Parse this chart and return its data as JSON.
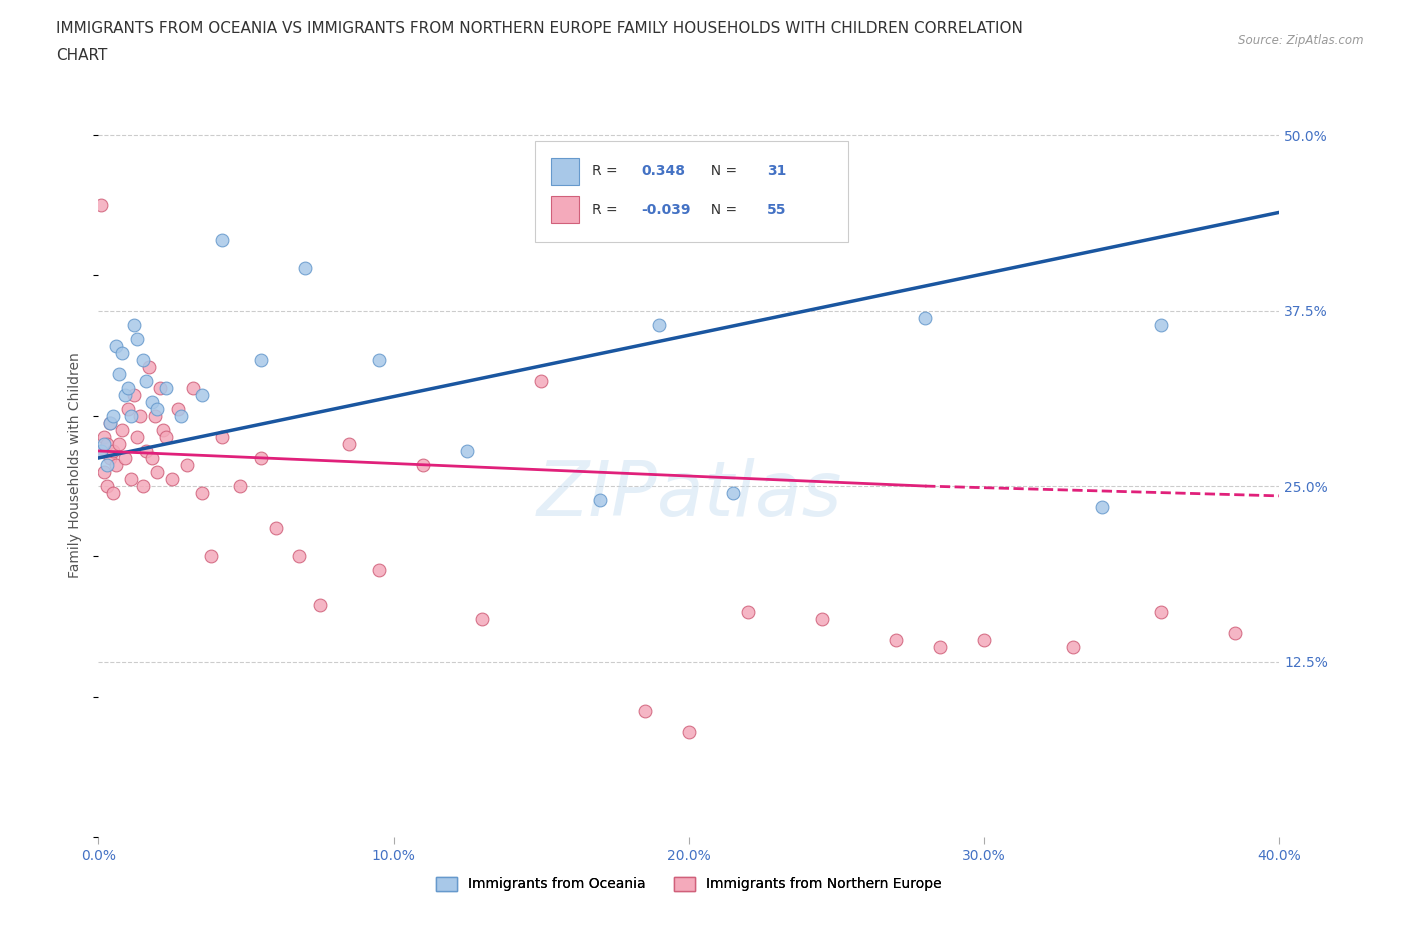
{
  "title_line1": "IMMIGRANTS FROM OCEANIA VS IMMIGRANTS FROM NORTHERN EUROPE FAMILY HOUSEHOLDS WITH CHILDREN CORRELATION",
  "title_line2": "CHART",
  "source_text": "Source: ZipAtlas.com",
  "watermark": "ZIPatlas",
  "ylabel": "Family Households with Children",
  "x_tick_labels": [
    "0.0%",
    "10.0%",
    "20.0%",
    "30.0%",
    "40.0%"
  ],
  "x_tick_values": [
    0.0,
    10.0,
    20.0,
    30.0,
    40.0
  ],
  "y_tick_labels_right": [
    "12.5%",
    "25.0%",
    "37.5%",
    "50.0%"
  ],
  "y_tick_values": [
    12.5,
    25.0,
    37.5,
    50.0
  ],
  "xlim": [
    0.0,
    40.0
  ],
  "ylim": [
    0.0,
    53.0
  ],
  "oceania_color": "#A8C8E8",
  "oceania_edge": "#6699CC",
  "oceania_label": "Immigrants from Oceania",
  "oceania_R": 0.348,
  "oceania_N": 31,
  "oceania_x": [
    0.1,
    0.2,
    0.3,
    0.4,
    0.5,
    0.6,
    0.7,
    0.8,
    0.9,
    1.0,
    1.1,
    1.2,
    1.3,
    1.5,
    1.6,
    1.8,
    2.0,
    2.3,
    2.8,
    3.5,
    4.2,
    5.5,
    7.0,
    9.5,
    12.5,
    17.0,
    19.0,
    21.5,
    28.0,
    34.0,
    36.0
  ],
  "oceania_y": [
    27.5,
    28.0,
    26.5,
    29.5,
    30.0,
    35.0,
    33.0,
    34.5,
    31.5,
    32.0,
    30.0,
    36.5,
    35.5,
    34.0,
    32.5,
    31.0,
    30.5,
    32.0,
    30.0,
    31.5,
    42.5,
    34.0,
    40.5,
    34.0,
    27.5,
    24.0,
    36.5,
    24.5,
    37.0,
    23.5,
    36.5
  ],
  "ne_color": "#F4AABB",
  "ne_edge": "#D0607A",
  "ne_label": "Immigrants from Northern Europe",
  "ne_R": -0.039,
  "ne_N": 55,
  "ne_x": [
    0.1,
    0.1,
    0.2,
    0.2,
    0.3,
    0.3,
    0.4,
    0.4,
    0.5,
    0.5,
    0.6,
    0.7,
    0.8,
    0.9,
    1.0,
    1.1,
    1.2,
    1.3,
    1.4,
    1.5,
    1.6,
    1.7,
    1.8,
    1.9,
    2.0,
    2.1,
    2.2,
    2.3,
    2.5,
    2.7,
    3.0,
    3.2,
    3.5,
    3.8,
    4.2,
    4.8,
    5.5,
    6.0,
    6.8,
    7.5,
    8.5,
    9.5,
    11.0,
    13.0,
    15.0,
    18.5,
    20.0,
    22.0,
    24.5,
    27.0,
    28.5,
    30.0,
    33.0,
    36.0,
    38.5
  ],
  "ne_y": [
    27.5,
    45.0,
    26.0,
    28.5,
    25.0,
    28.0,
    29.5,
    27.0,
    24.5,
    27.5,
    26.5,
    28.0,
    29.0,
    27.0,
    30.5,
    25.5,
    31.5,
    28.5,
    30.0,
    25.0,
    27.5,
    33.5,
    27.0,
    30.0,
    26.0,
    32.0,
    29.0,
    28.5,
    25.5,
    30.5,
    26.5,
    32.0,
    24.5,
    20.0,
    28.5,
    25.0,
    27.0,
    22.0,
    20.0,
    16.5,
    28.0,
    19.0,
    26.5,
    15.5,
    32.5,
    9.0,
    7.5,
    16.0,
    15.5,
    14.0,
    13.5,
    14.0,
    13.5,
    16.0,
    14.5
  ],
  "trend_blue_x0": 0.0,
  "trend_blue_x1": 40.0,
  "trend_blue_y0": 27.0,
  "trend_blue_y1": 44.5,
  "trend_blue_color": "#1A56A0",
  "trend_pink_solid_x0": 0.0,
  "trend_pink_solid_x1": 28.0,
  "trend_pink_solid_y0": 27.5,
  "trend_pink_solid_y1": 25.0,
  "trend_pink_dash_x0": 28.0,
  "trend_pink_dash_x1": 40.0,
  "trend_pink_dash_y0": 25.0,
  "trend_pink_dash_y1": 24.3,
  "trend_pink_color": "#E0207A",
  "background_color": "#FFFFFF",
  "grid_dash_color": "#CCCCCC",
  "title_color": "#333333",
  "axis_color": "#4472C4",
  "title_fontsize": 11,
  "tick_fontsize": 10
}
